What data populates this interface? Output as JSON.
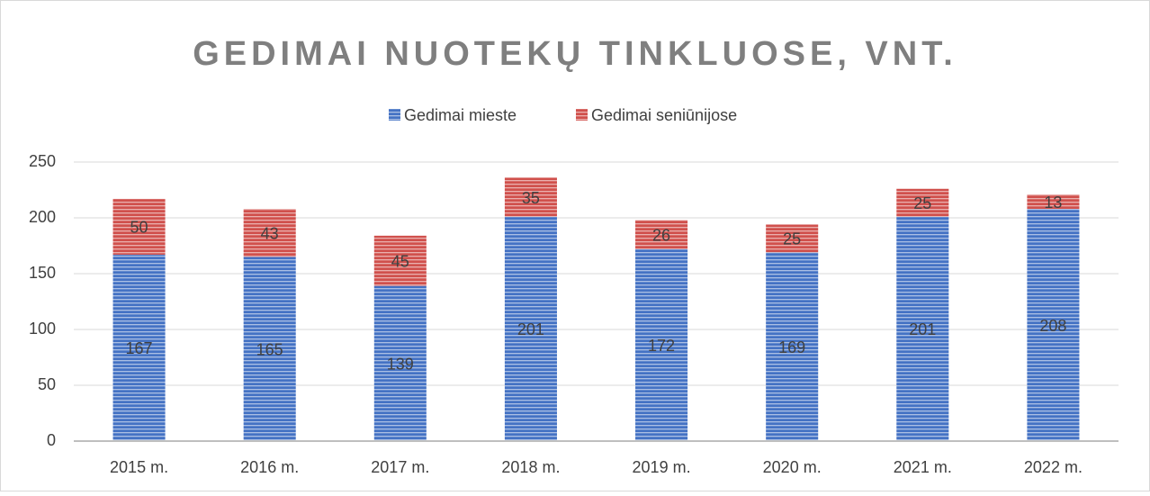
{
  "chart_data": {
    "type": "stacked_bar",
    "title": "GEDIMAI NUOTEKŲ TINKLUOSE, VNT.",
    "categories": [
      "2015 m.",
      "2016 m.",
      "2017 m.",
      "2018 m.",
      "2019 m.",
      "2020 m.",
      "2021 m.",
      "2022 m."
    ],
    "series": [
      {
        "name": "Gedimai mieste",
        "color": "#4472c4",
        "values": [
          167,
          165,
          139,
          201,
          172,
          169,
          201,
          208
        ]
      },
      {
        "name": "Gedimai seniūnijose",
        "color": "#d0504c",
        "values": [
          50,
          43,
          45,
          35,
          26,
          25,
          25,
          13
        ]
      }
    ],
    "ylim": [
      0,
      250
    ],
    "yticks": [
      0,
      50,
      100,
      150,
      200,
      250
    ],
    "grid": true,
    "legend": "top"
  }
}
